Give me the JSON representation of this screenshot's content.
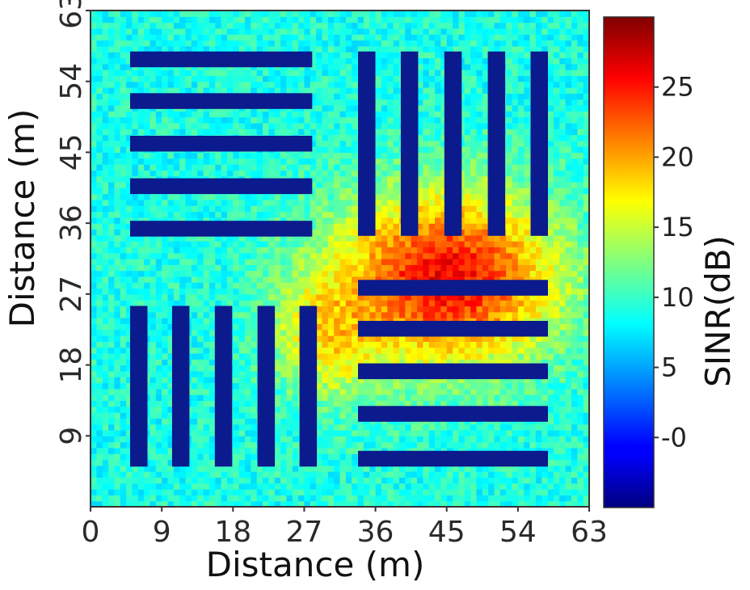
{
  "chart_data": {
    "type": "heatmap",
    "title": "",
    "xlabel": "Distance (m)",
    "ylabel": "Distance (m)",
    "colorbar_label": "SINR(dB)",
    "xlim": [
      0,
      63
    ],
    "ylim": [
      0,
      63
    ],
    "x_ticks": [
      "0",
      "9",
      "18",
      "27",
      "36",
      "45",
      "54",
      "63"
    ],
    "y_ticks": [
      "9",
      "18",
      "27",
      "36",
      "45",
      "54",
      "63"
    ],
    "colorbar": {
      "range": [
        -5,
        30
      ],
      "ticks": [
        "-0",
        "5",
        "10",
        "15",
        "20",
        "25"
      ],
      "colormap": "jet"
    },
    "field": {
      "base_sinr_db": 9,
      "hotspot": {
        "x": 45,
        "y": 29,
        "peak_sinr_db": 26
      },
      "hotspot_spread_x": 14,
      "hotspot_spread_y": 11,
      "secondary_hotspot": {
        "x": 30,
        "y": 22,
        "peak_sinr_db": 8
      }
    },
    "obstacles": [
      {
        "group": "top-left horizontal racks",
        "x": [
          5,
          28
        ],
        "y": [
          34.3,
          36.3
        ],
        "sinr_db": -5
      },
      {
        "group": "top-left horizontal racks",
        "x": [
          5,
          28
        ],
        "y": [
          39.7,
          41.7
        ],
        "sinr_db": -5
      },
      {
        "group": "top-left horizontal racks",
        "x": [
          5,
          28
        ],
        "y": [
          45.1,
          47.1
        ],
        "sinr_db": -5
      },
      {
        "group": "top-left horizontal racks",
        "x": [
          5,
          28
        ],
        "y": [
          50.5,
          52.5
        ],
        "sinr_db": -5
      },
      {
        "group": "top-left horizontal racks",
        "x": [
          5,
          28
        ],
        "y": [
          55.8,
          57.8
        ],
        "sinr_db": -5
      },
      {
        "group": "top-right vertical racks",
        "x": [
          33.8,
          36
        ],
        "y": [
          34.4,
          57.8
        ],
        "sinr_db": -5
      },
      {
        "group": "top-right vertical racks",
        "x": [
          39.2,
          41.4
        ],
        "y": [
          34.4,
          57.8
        ],
        "sinr_db": -5
      },
      {
        "group": "top-right vertical racks",
        "x": [
          44.7,
          46.9
        ],
        "y": [
          34.4,
          57.8
        ],
        "sinr_db": -5
      },
      {
        "group": "top-right vertical racks",
        "x": [
          50.2,
          52.4
        ],
        "y": [
          34.4,
          57.8
        ],
        "sinr_db": -5
      },
      {
        "group": "top-right vertical racks",
        "x": [
          55.6,
          57.8
        ],
        "y": [
          34.4,
          57.8
        ],
        "sinr_db": -5
      },
      {
        "group": "bottom-left vertical racks",
        "x": [
          5,
          7.2
        ],
        "y": [
          5.1,
          25.5
        ],
        "sinr_db": -5
      },
      {
        "group": "bottom-left vertical racks",
        "x": [
          10.3,
          12.5
        ],
        "y": [
          5.1,
          25.5
        ],
        "sinr_db": -5
      },
      {
        "group": "bottom-left vertical racks",
        "x": [
          15.7,
          17.9
        ],
        "y": [
          5.1,
          25.5
        ],
        "sinr_db": -5
      },
      {
        "group": "bottom-left vertical racks",
        "x": [
          21.1,
          23.3
        ],
        "y": [
          5.1,
          25.5
        ],
        "sinr_db": -5
      },
      {
        "group": "bottom-left vertical racks",
        "x": [
          26.4,
          28.6
        ],
        "y": [
          5.1,
          25.5
        ],
        "sinr_db": -5
      },
      {
        "group": "bottom-right horizontal racks",
        "x": [
          33.8,
          57.8
        ],
        "y": [
          5.1,
          7.1
        ],
        "sinr_db": -5
      },
      {
        "group": "bottom-right horizontal racks",
        "x": [
          33.8,
          57.8
        ],
        "y": [
          10.8,
          12.8
        ],
        "sinr_db": -5
      },
      {
        "group": "bottom-right horizontal racks",
        "x": [
          33.8,
          57.8
        ],
        "y": [
          16.2,
          18.2
        ],
        "sinr_db": -5
      },
      {
        "group": "bottom-right horizontal racks",
        "x": [
          33.8,
          57.8
        ],
        "y": [
          21.6,
          23.6
        ],
        "sinr_db": -5
      },
      {
        "group": "bottom-right horizontal racks",
        "x": [
          33.8,
          57.8
        ],
        "y": [
          26.8,
          28.8
        ],
        "sinr_db": -5
      }
    ]
  }
}
